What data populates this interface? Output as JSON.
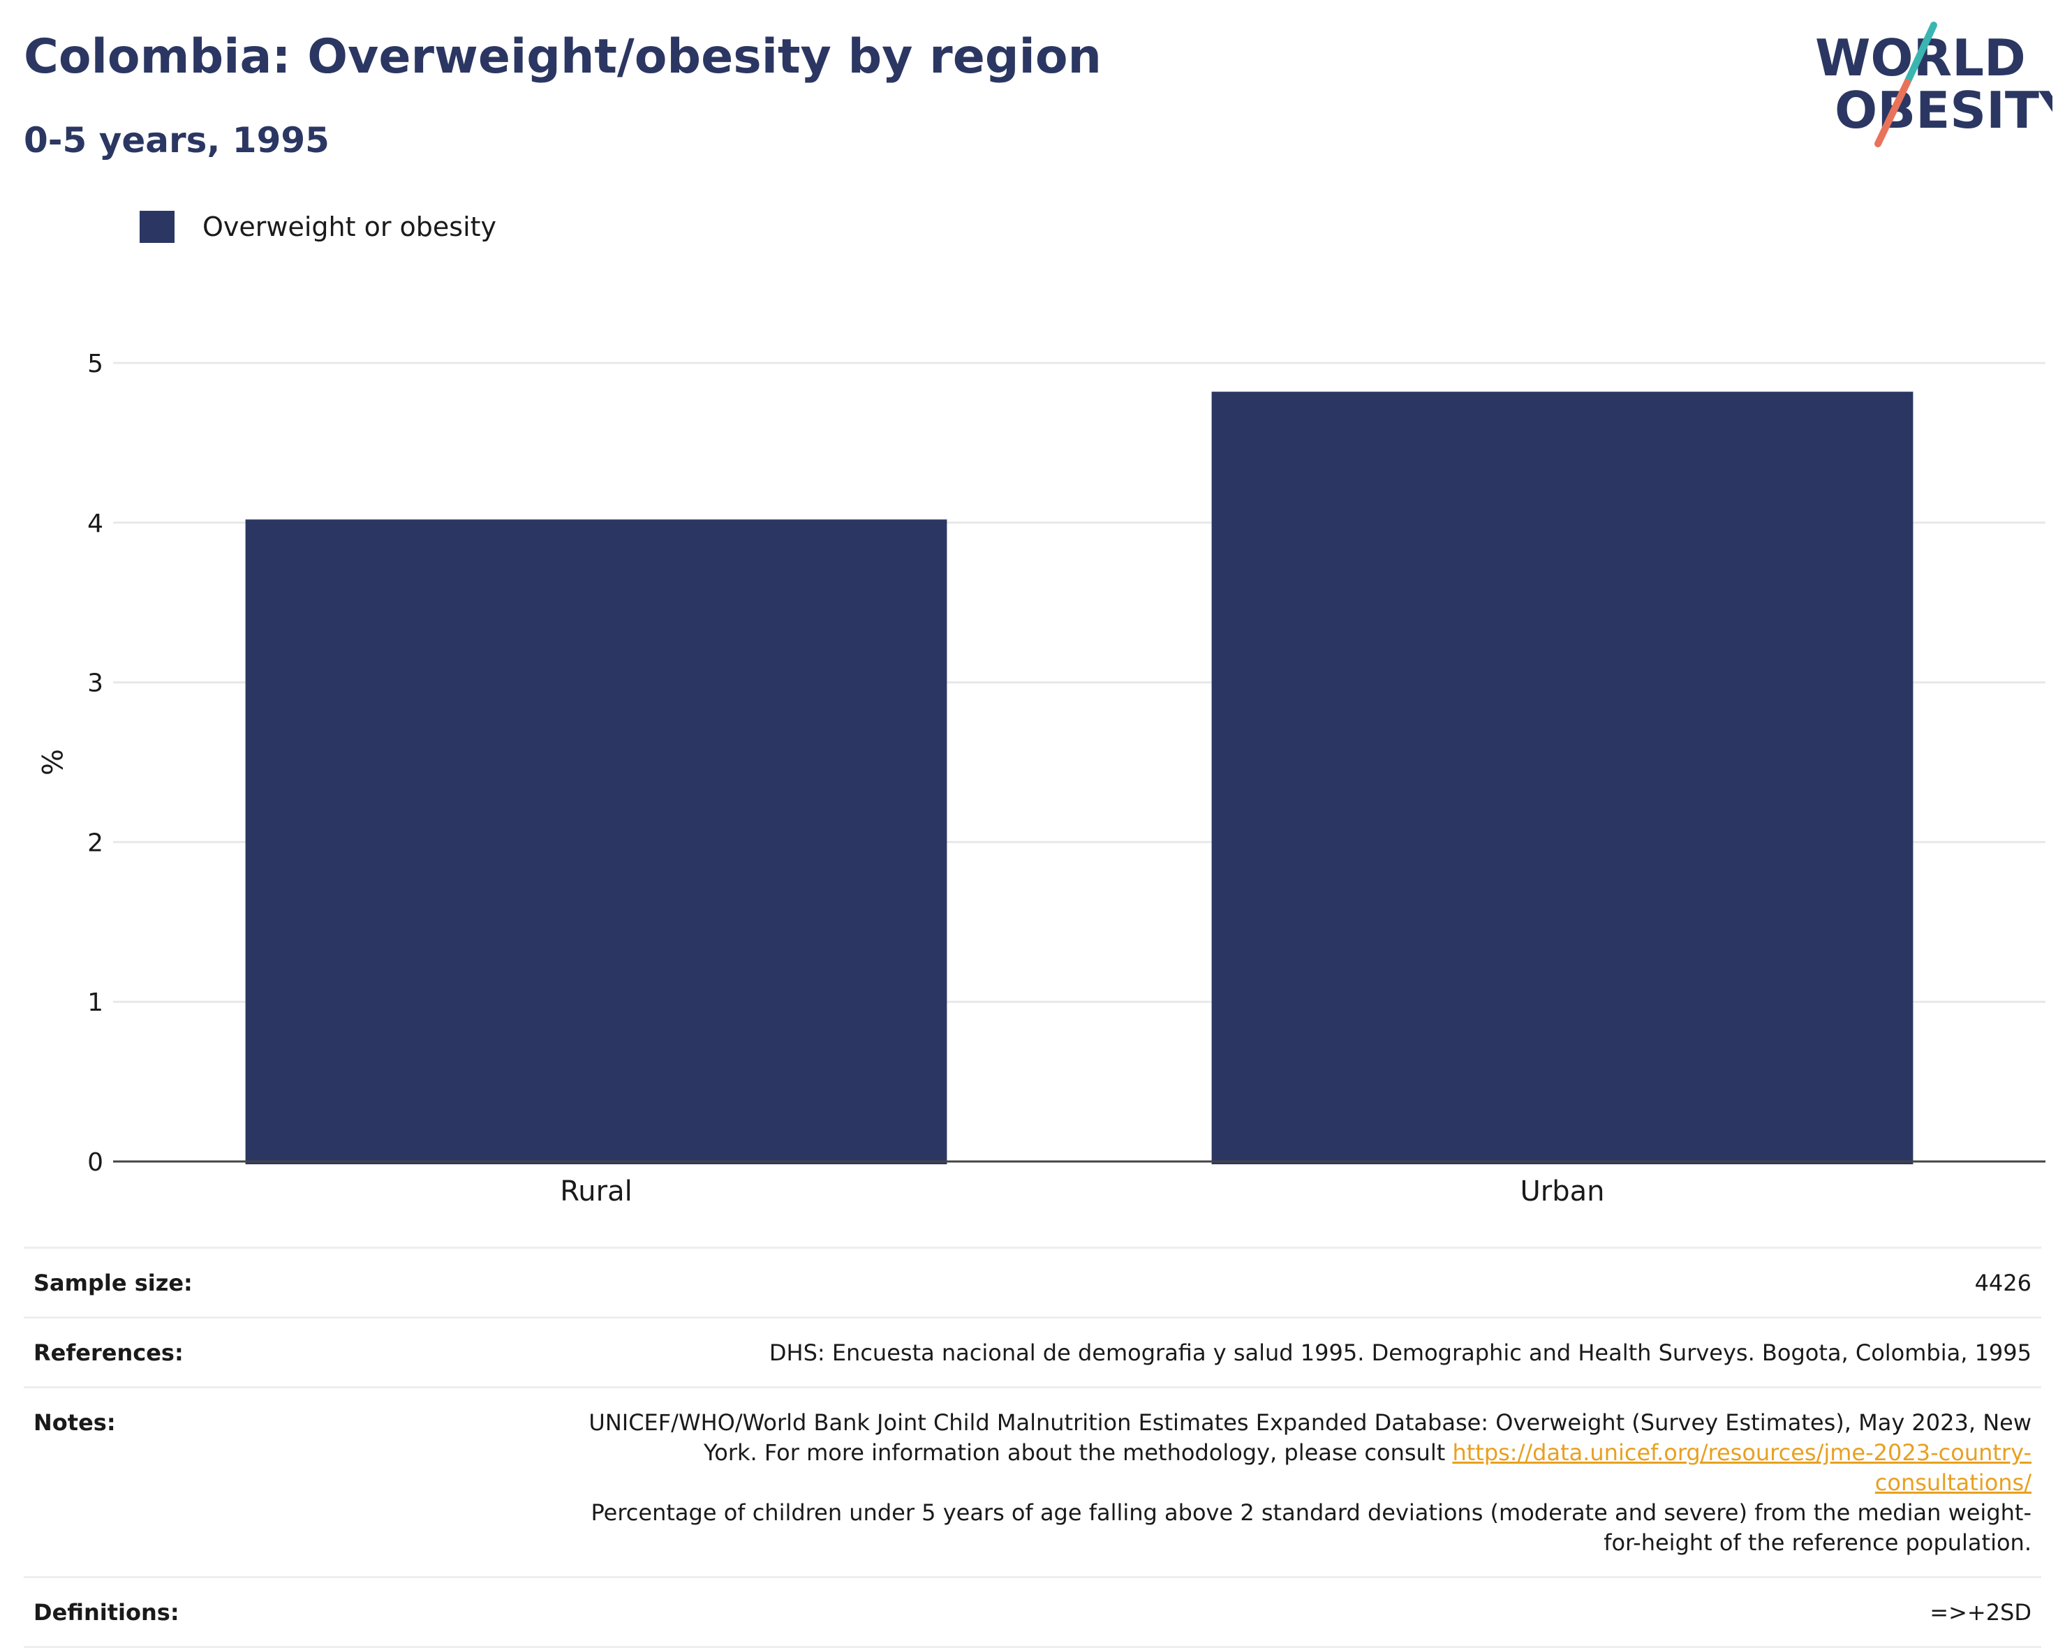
{
  "header": {
    "title": "Colombia: Overweight/obesity by region",
    "subtitle": "0-5 years, 1995"
  },
  "logo": {
    "line1": "WORLD",
    "line2": "OBESITY",
    "text_color": "#2b3762",
    "slash_top_color": "#3ab5b0",
    "slash_bottom_color": "#e8735a"
  },
  "chart_data": {
    "type": "bar",
    "title": "Colombia: Overweight/obesity by region",
    "subtitle": "0-5 years, 1995",
    "categories": [
      "Rural",
      "Urban"
    ],
    "series": [
      {
        "name": "Overweight or obesity",
        "values": [
          4.02,
          4.82
        ],
        "color": "#2b3762"
      }
    ],
    "xlabel": "",
    "ylabel": "%",
    "ylim": [
      0,
      5
    ],
    "yticks": [
      "0",
      "1",
      "2",
      "3",
      "4",
      "5"
    ],
    "grid": true,
    "legend_position": "top-left"
  },
  "info": {
    "sample_size_label": "Sample size:",
    "sample_size_value": "4426",
    "references_label": "References:",
    "references_value": "DHS: Encuesta nacional de demografia y salud 1995. Demographic and Health Surveys. Bogota, Colombia, 1995",
    "notes_label": "Notes:",
    "notes_text_1": "UNICEF/WHO/World Bank Joint Child Malnutrition Estimates Expanded Database: Overweight (Survey Estimates), May 2023, New York. For more information about the methodology, please consult ",
    "notes_link": "https://data.unicef.org/resources/jme-2023-country-consultations/",
    "notes_text_2": "Percentage of children under 5 years of age falling above 2 standard deviations (moderate and severe) from the median weight-for-height of the reference population.",
    "definitions_label": "Definitions:",
    "definitions_value": "=>+2SD"
  }
}
